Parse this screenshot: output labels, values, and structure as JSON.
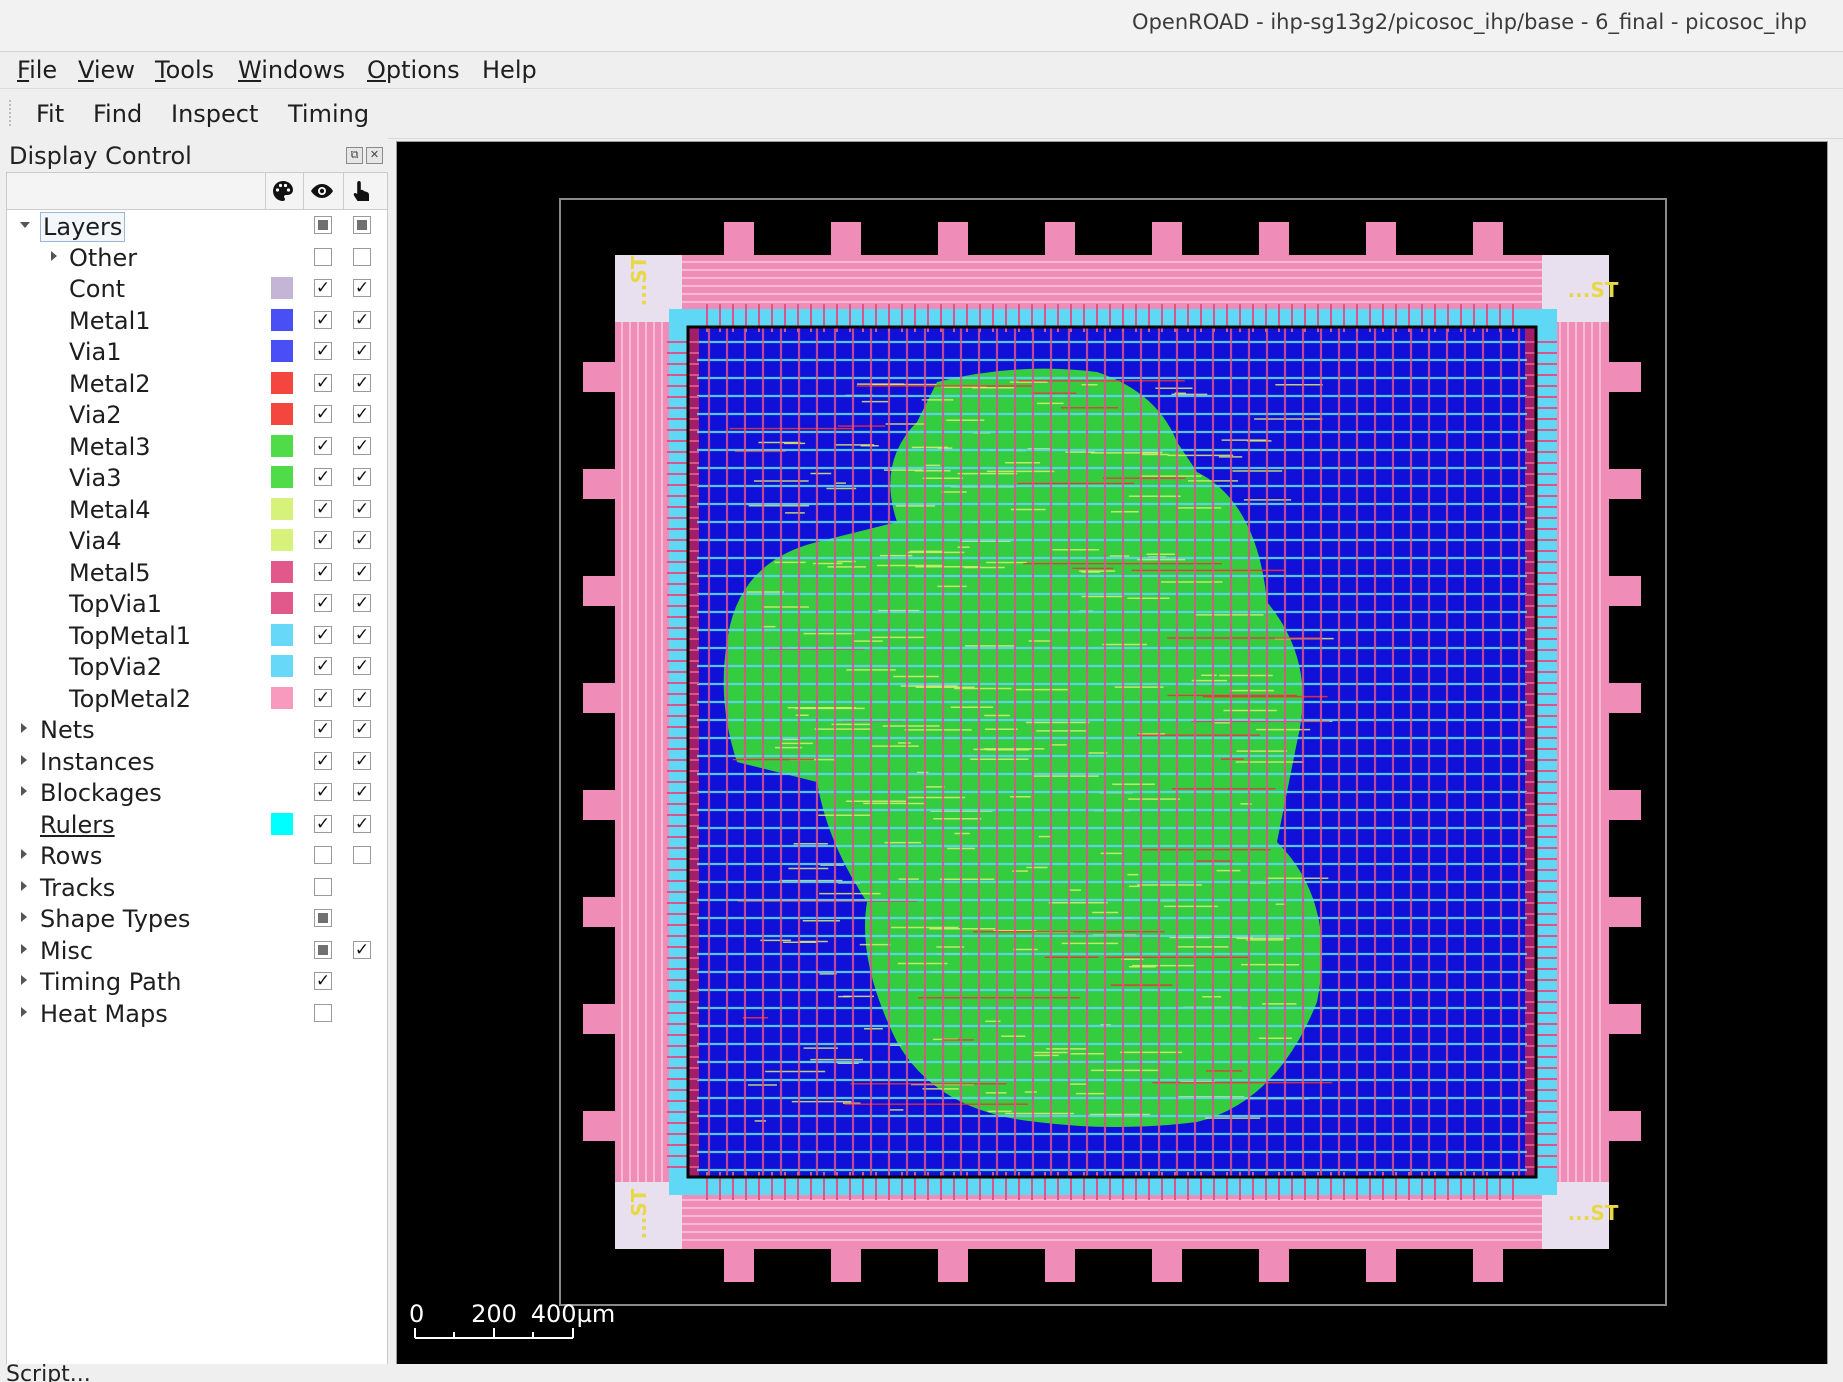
{
  "window": {
    "title": "OpenROAD - ihp-sg13g2/picosoc_ihp/base - 6_final - picosoc_ihp"
  },
  "menu": [
    {
      "label": "File",
      "mnemonic": "F",
      "rest": "ile"
    },
    {
      "label": "View",
      "mnemonic": "V",
      "rest": "iew"
    },
    {
      "label": "Tools",
      "mnemonic": "T",
      "rest": "ools"
    },
    {
      "label": "Windows",
      "mnemonic": "W",
      "rest": "indows"
    },
    {
      "label": "Options",
      "mnemonic": "O",
      "rest": "ptions"
    },
    {
      "label": "Help",
      "mnemonic": "",
      "rest": "Help"
    }
  ],
  "toolbar": [
    "Fit",
    "Find",
    "Inspect",
    "Timing"
  ],
  "display_control": {
    "title": "Display Control",
    "columns": [
      "color-palette-icon",
      "visible-eye-icon",
      "selectable-hand-icon"
    ],
    "rows": [
      {
        "label": "Layers",
        "indent": 0,
        "expander": "expanded",
        "color": null,
        "visible": "partial",
        "selectable": "partial",
        "selected": true
      },
      {
        "label": "Other",
        "indent": 1,
        "expander": "collapsed",
        "color": null,
        "visible": "off",
        "selectable": "off"
      },
      {
        "label": "Cont",
        "indent": 1,
        "expander": "none",
        "color": "#c4b4d6",
        "visible": "on",
        "selectable": "on"
      },
      {
        "label": "Metal1",
        "indent": 1,
        "expander": "none",
        "color": "#4a4ff5",
        "visible": "on",
        "selectable": "on"
      },
      {
        "label": "Via1",
        "indent": 1,
        "expander": "none",
        "color": "#4a4ff5",
        "visible": "on",
        "selectable": "on"
      },
      {
        "label": "Metal2",
        "indent": 1,
        "expander": "none",
        "color": "#f5453f",
        "visible": "on",
        "selectable": "on"
      },
      {
        "label": "Via2",
        "indent": 1,
        "expander": "none",
        "color": "#f5453f",
        "visible": "on",
        "selectable": "on"
      },
      {
        "label": "Metal3",
        "indent": 1,
        "expander": "none",
        "color": "#4fdc48",
        "visible": "on",
        "selectable": "on"
      },
      {
        "label": "Via3",
        "indent": 1,
        "expander": "none",
        "color": "#4fdc48",
        "visible": "on",
        "selectable": "on"
      },
      {
        "label": "Metal4",
        "indent": 1,
        "expander": "none",
        "color": "#d6f27a",
        "visible": "on",
        "selectable": "on"
      },
      {
        "label": "Via4",
        "indent": 1,
        "expander": "none",
        "color": "#d6f27a",
        "visible": "on",
        "selectable": "on"
      },
      {
        "label": "Metal5",
        "indent": 1,
        "expander": "none",
        "color": "#e1598a",
        "visible": "on",
        "selectable": "on"
      },
      {
        "label": "TopVia1",
        "indent": 1,
        "expander": "none",
        "color": "#e1598a",
        "visible": "on",
        "selectable": "on"
      },
      {
        "label": "TopMetal1",
        "indent": 1,
        "expander": "none",
        "color": "#68d8f8",
        "visible": "on",
        "selectable": "on"
      },
      {
        "label": "TopVia2",
        "indent": 1,
        "expander": "none",
        "color": "#68d8f8",
        "visible": "on",
        "selectable": "on"
      },
      {
        "label": "TopMetal2",
        "indent": 1,
        "expander": "none",
        "color": "#f79abd",
        "visible": "on",
        "selectable": "on"
      },
      {
        "label": "Nets",
        "indent": 0,
        "expander": "collapsed",
        "color": null,
        "visible": "on",
        "selectable": "on"
      },
      {
        "label": "Instances",
        "indent": 0,
        "expander": "collapsed",
        "color": null,
        "visible": "on",
        "selectable": "on"
      },
      {
        "label": "Blockages",
        "indent": 0,
        "expander": "collapsed",
        "color": null,
        "visible": "on",
        "selectable": "on"
      },
      {
        "label": "Rulers",
        "indent": 0,
        "expander": "none",
        "color": "#00ffff",
        "visible": "on",
        "selectable": "on",
        "underline": true
      },
      {
        "label": "Rows",
        "indent": 0,
        "expander": "collapsed",
        "color": null,
        "visible": "off",
        "selectable": "off"
      },
      {
        "label": "Tracks",
        "indent": 0,
        "expander": "collapsed",
        "color": null,
        "visible": "off",
        "selectable": "none"
      },
      {
        "label": "Shape Types",
        "indent": 0,
        "expander": "collapsed",
        "color": null,
        "visible": "partial",
        "selectable": "none"
      },
      {
        "label": "Misc",
        "indent": 0,
        "expander": "collapsed",
        "color": null,
        "visible": "partial",
        "selectable": "on"
      },
      {
        "label": "Timing Path",
        "indent": 0,
        "expander": "collapsed",
        "color": null,
        "visible": "on",
        "selectable": "none"
      },
      {
        "label": "Heat Maps",
        "indent": 0,
        "expander": "collapsed",
        "color": null,
        "visible": "off",
        "selectable": "none"
      }
    ]
  },
  "layout_view": {
    "pad_labels": [
      "...ST",
      "...ST",
      "...ST",
      "...ST"
    ],
    "scale_bar": {
      "labels": [
        "0",
        "200",
        "400µm"
      ]
    },
    "colors": {
      "background": "#000000",
      "core": "#1010d8",
      "pad_ring": "#f08cb8",
      "top_metal1": "#5fd8f5",
      "cells": "#38d838",
      "metal4": "#d8f070",
      "metal2": "#f0303c",
      "metal5": "#d9558a",
      "label": "#e8d848"
    }
  },
  "status": {
    "text": "Script..."
  }
}
